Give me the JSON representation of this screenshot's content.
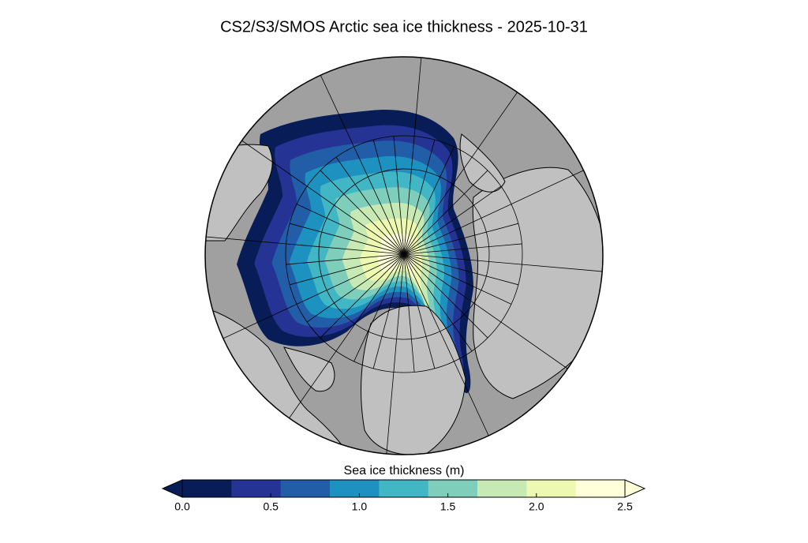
{
  "title": "CS2/S3/SMOS Arctic sea ice thickness - 2025-10-31",
  "colorbar": {
    "label": "Sea ice thickness (m)",
    "vmin": 0,
    "vmax": 2.5,
    "colors": [
      "#081d58",
      "#253494",
      "#225ea8",
      "#1d91c0",
      "#41b6c4",
      "#7fcdbb",
      "#c7e9b4",
      "#edf8b1",
      "#ffffd9"
    ],
    "under_color": "#081d58",
    "over_color": "#ffffd9",
    "ticks": [
      {
        "value": 0,
        "label": "0.0"
      },
      {
        "value": 0.5,
        "label": "0.5"
      },
      {
        "value": 1,
        "label": "1.0"
      },
      {
        "value": 1.5,
        "label": "1.5"
      },
      {
        "value": 2,
        "label": "2.0"
      },
      {
        "value": 2.5,
        "label": "2.5"
      }
    ]
  }
}
